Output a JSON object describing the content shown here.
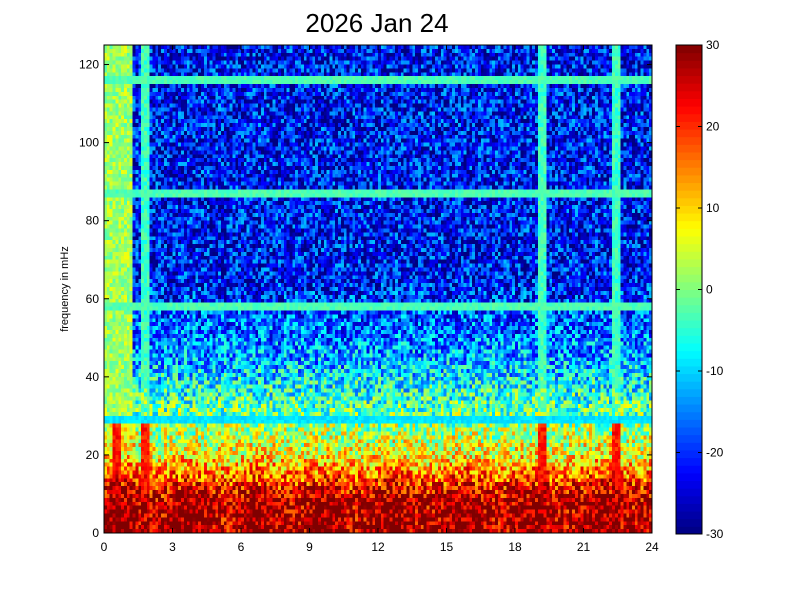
{
  "chart_data": {
    "type": "heatmap",
    "title": "2026 Jan 24",
    "xlabel": "",
    "ylabel": "frequency in mHz",
    "xlim": [
      0,
      24
    ],
    "ylim": [
      0,
      125
    ],
    "x_ticks": [
      "0",
      "3",
      "6",
      "9",
      "12",
      "15",
      "18",
      "21",
      "24"
    ],
    "y_ticks": [
      "0",
      "20",
      "40",
      "60",
      "80",
      "100",
      "120"
    ],
    "colorbar": {
      "clim": [
        -30,
        30
      ],
      "ticks": [
        "30",
        "20",
        "10",
        "0",
        "-10",
        "-20",
        "-30"
      ],
      "colormap": "jet"
    },
    "grid": {
      "x_bins": 192,
      "y_bins": 125
    },
    "features": {
      "horizontal_lines_mHz": [
        116,
        87,
        58,
        29
      ],
      "vertical_lines_hours": [
        0.6,
        1.8,
        19.2,
        22.4
      ],
      "base_level_dB": {
        "low_freq_0_10": 25,
        "mid_20_40": 0,
        "high_60_125": -22
      }
    }
  }
}
